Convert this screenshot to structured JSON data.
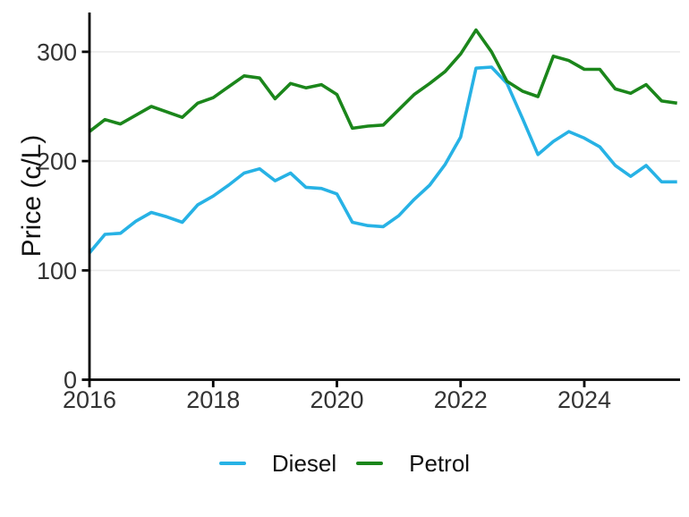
{
  "chart_data": {
    "type": "line",
    "title": "",
    "xlabel": "",
    "ylabel": "Price (c/L)",
    "grid": "horizontal-only",
    "legend_position": "bottom-center",
    "xlim": [
      2016,
      2025.6
    ],
    "ylim": [
      0,
      336
    ],
    "x_ticks_values": [
      2016,
      2018,
      2020,
      2022,
      2024
    ],
    "x_ticks_labels": [
      "2016",
      "2018",
      "2020",
      "2022",
      "2024"
    ],
    "y_ticks_values": [
      0,
      100,
      200,
      300
    ],
    "y_ticks_labels": [
      "0",
      "100",
      "200",
      "300"
    ],
    "x": [
      2016.0,
      2016.25,
      2016.5,
      2016.75,
      2017.0,
      2017.25,
      2017.5,
      2017.75,
      2018.0,
      2018.25,
      2018.5,
      2018.75,
      2019.0,
      2019.25,
      2019.5,
      2019.75,
      2020.0,
      2020.25,
      2020.5,
      2020.75,
      2021.0,
      2021.25,
      2021.5,
      2021.75,
      2022.0,
      2022.25,
      2022.5,
      2022.75,
      2023.0,
      2023.25,
      2023.5,
      2023.75,
      2024.0,
      2024.25,
      2024.5,
      2024.75,
      2025.0,
      2025.25,
      2025.5
    ],
    "series": [
      {
        "name": "Diesel",
        "color": "#27b2e5",
        "values": [
          116,
          133,
          134,
          145,
          153,
          149,
          144,
          160,
          168,
          178,
          189,
          193,
          182,
          189,
          176,
          175,
          170,
          144,
          141,
          140,
          150,
          165,
          178,
          197,
          222,
          285,
          286,
          271,
          239,
          206,
          218,
          227,
          221,
          213,
          196,
          186,
          196,
          181,
          181
        ]
      },
      {
        "name": "Petrol",
        "color": "#1b861b",
        "values": [
          227,
          238,
          234,
          242,
          250,
          245,
          240,
          253,
          258,
          268,
          278,
          276,
          257,
          271,
          267,
          270,
          261,
          230,
          232,
          233,
          247,
          261,
          271,
          282,
          298,
          320,
          300,
          273,
          264,
          259,
          296,
          292,
          284,
          284,
          266,
          262,
          270,
          255,
          253
        ]
      }
    ],
    "style": {
      "axis_color": "#000000",
      "tick_label_color": "#333333",
      "grid_color": "#ebebeb",
      "background": "#ffffff"
    }
  }
}
